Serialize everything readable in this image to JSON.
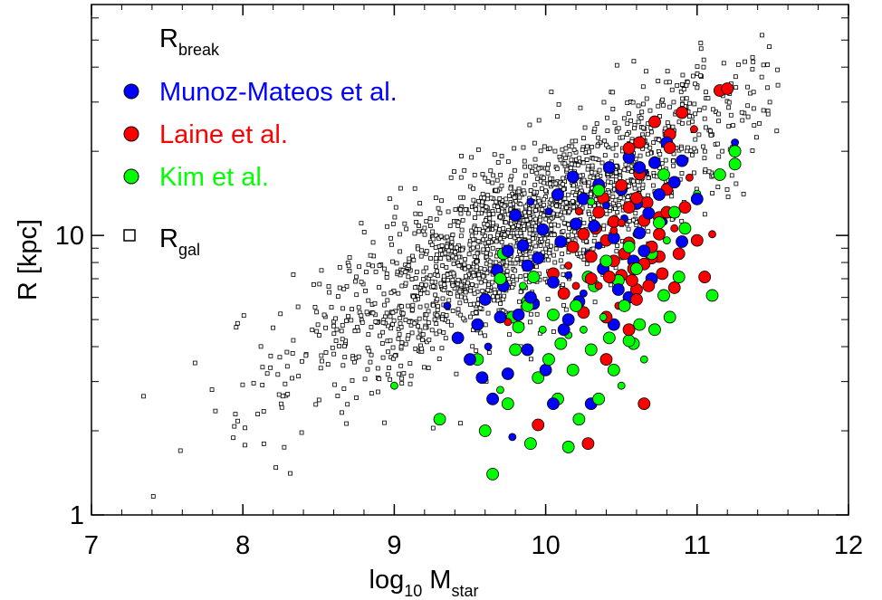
{
  "chart_data": {
    "type": "scatter",
    "xlabel": {
      "base": "log",
      "sub": "10",
      "mid": " M",
      "sub2": "star"
    },
    "ylabel": "R [kpc]",
    "xlim": [
      7,
      12
    ],
    "ylim": [
      1,
      67
    ],
    "yscale": "log",
    "xticks": [
      7,
      8,
      9,
      10,
      11,
      12
    ],
    "xtick_labels": [
      "7",
      "8",
      "9",
      "10",
      "11",
      "12"
    ],
    "yticks": [
      1,
      10
    ],
    "ytick_labels": [
      "1",
      "10"
    ],
    "legend": {
      "placement": "top-left",
      "header": {
        "main": "R",
        "sub": "break"
      },
      "footer": {
        "main": "R",
        "sub": "gal"
      }
    },
    "colors": {
      "Munoz-Mateos et al.": "#0000ff",
      "Laine et al.": "#ff0000",
      "Kim et al.": "#00ff00",
      "gal": "#000000"
    },
    "series": [
      {
        "name": "Munoz-Mateos et al.",
        "marker": "circle",
        "color": "#0000ff",
        "points": [
          [
            9.35,
            5.6
          ],
          [
            9.42,
            4.3
          ],
          [
            9.5,
            3.6
          ],
          [
            9.55,
            4.8
          ],
          [
            9.6,
            5.9
          ],
          [
            9.62,
            4.0
          ],
          [
            9.65,
            2.6
          ],
          [
            9.68,
            7.5
          ],
          [
            9.72,
            6.6
          ],
          [
            9.75,
            3.2
          ],
          [
            9.78,
            1.9
          ],
          [
            9.8,
            11.8
          ],
          [
            9.82,
            5.2
          ],
          [
            9.85,
            9.2
          ],
          [
            9.88,
            7.8
          ],
          [
            9.9,
            13.2
          ],
          [
            9.92,
            5.7
          ],
          [
            9.95,
            8.3
          ],
          [
            9.98,
            10.5
          ],
          [
            10.0,
            3.3
          ],
          [
            10.02,
            12.2
          ],
          [
            10.05,
            6.8
          ],
          [
            10.08,
            14.0
          ],
          [
            10.1,
            9.5
          ],
          [
            10.12,
            4.6
          ],
          [
            10.15,
            7.2
          ],
          [
            10.18,
            16.2
          ],
          [
            10.2,
            11.0
          ],
          [
            10.22,
            5.8
          ],
          [
            10.25,
            13.5
          ],
          [
            10.28,
            8.6
          ],
          [
            10.3,
            2.5
          ],
          [
            10.32,
            10.8
          ],
          [
            10.35,
            15.2
          ],
          [
            10.38,
            7.6
          ],
          [
            10.4,
            12.8
          ],
          [
            10.42,
            17.5
          ],
          [
            10.45,
            9.8
          ],
          [
            10.48,
            6.4
          ],
          [
            10.5,
            14.6
          ],
          [
            10.52,
            11.5
          ],
          [
            10.55,
            19.0
          ],
          [
            10.58,
            8.1
          ],
          [
            10.6,
            13.0
          ],
          [
            10.62,
            10.2
          ],
          [
            10.65,
            16.8
          ],
          [
            10.68,
            12.0
          ],
          [
            10.7,
            7.0
          ],
          [
            10.72,
            18.2
          ],
          [
            10.75,
            14.0
          ],
          [
            10.78,
            11.2
          ],
          [
            10.8,
            21.5
          ],
          [
            10.85,
            15.5
          ],
          [
            10.9,
            9.5
          ],
          [
            11.0,
            13.5
          ],
          [
            11.25,
            21.5
          ],
          [
            9.58,
            3.1
          ],
          [
            9.7,
            5.1
          ],
          [
            9.88,
            3.9
          ],
          [
            10.15,
            5.0
          ],
          [
            10.25,
            6.2
          ],
          [
            10.55,
            6.0
          ],
          [
            10.65,
            8.8
          ],
          [
            10.05,
            2.5
          ],
          [
            9.9,
            6.0
          ],
          [
            10.35,
            9.2
          ],
          [
            10.45,
            4.8
          ],
          [
            10.62,
            17.5
          ],
          [
            9.75,
            8.8
          ],
          [
            10.9,
            18.5
          ]
        ]
      },
      {
        "name": "Laine et al.",
        "marker": "circle",
        "color": "#ff0000",
        "points": [
          [
            9.75,
            4.9
          ],
          [
            9.95,
            2.1
          ],
          [
            10.05,
            7.3
          ],
          [
            10.12,
            6.2
          ],
          [
            10.18,
            9.1
          ],
          [
            10.22,
            12.2
          ],
          [
            10.25,
            5.3
          ],
          [
            10.28,
            1.8
          ],
          [
            10.3,
            8.4
          ],
          [
            10.33,
            10.6
          ],
          [
            10.35,
            6.6
          ],
          [
            10.38,
            13.6
          ],
          [
            10.4,
            9.6
          ],
          [
            10.42,
            7.1
          ],
          [
            10.45,
            11.2
          ],
          [
            10.48,
            5.6
          ],
          [
            10.5,
            15.1
          ],
          [
            10.52,
            8.6
          ],
          [
            10.55,
            12.6
          ],
          [
            10.57,
            6.9
          ],
          [
            10.6,
            10.1
          ],
          [
            10.62,
            16.6
          ],
          [
            10.65,
            7.9
          ],
          [
            10.67,
            13.1
          ],
          [
            10.7,
            9.1
          ],
          [
            10.72,
            18.6
          ],
          [
            10.75,
            11.6
          ],
          [
            10.77,
            7.3
          ],
          [
            10.8,
            14.6
          ],
          [
            10.82,
            20.6
          ],
          [
            10.85,
            10.6
          ],
          [
            10.88,
            8.6
          ],
          [
            10.92,
            12.6
          ],
          [
            11.0,
            9.6
          ],
          [
            11.05,
            7.1
          ],
          [
            11.1,
            10.1
          ],
          [
            11.15,
            33.0
          ],
          [
            10.65,
            2.5
          ],
          [
            10.4,
            3.6
          ],
          [
            10.55,
            4.6
          ],
          [
            10.2,
            6.6
          ],
          [
            10.45,
            8.1
          ],
          [
            10.58,
            7.6
          ],
          [
            10.68,
            6.6
          ],
          [
            10.75,
            10.1
          ],
          [
            10.5,
            11.1
          ],
          [
            10.35,
            12.1
          ],
          [
            10.6,
            13.6
          ],
          [
            10.25,
            10.1
          ],
          [
            10.8,
            12.1
          ],
          [
            10.95,
            16.1
          ],
          [
            10.72,
            25.5
          ],
          [
            10.55,
            20.5
          ],
          [
            10.62,
            21.5
          ],
          [
            10.3,
            7.0
          ],
          [
            10.48,
            6.3
          ],
          [
            10.6,
            5.9
          ],
          [
            10.7,
            8.3
          ],
          [
            10.85,
            6.5
          ],
          [
            10.4,
            5.1
          ],
          [
            10.15,
            7.8
          ],
          [
            10.9,
            27.5
          ],
          [
            11.2,
            33.5
          ],
          [
            10.5,
            7.2
          ],
          [
            10.55,
            9.4
          ],
          [
            10.45,
            10.4
          ],
          [
            10.6,
            6.4
          ],
          [
            10.65,
            11.3
          ],
          [
            10.75,
            8.4
          ],
          [
            10.82,
            23.0
          ],
          [
            10.98,
            24.0
          ]
        ]
      },
      {
        "name": "Kim et al.",
        "marker": "circle",
        "color": "#00ff00",
        "points": [
          [
            9.0,
            2.9
          ],
          [
            9.3,
            2.2
          ],
          [
            9.55,
            3.6
          ],
          [
            9.6,
            2.0
          ],
          [
            9.65,
            1.4
          ],
          [
            9.7,
            2.8
          ],
          [
            9.72,
            8.6
          ],
          [
            9.75,
            2.5
          ],
          [
            9.78,
            5.1
          ],
          [
            9.8,
            3.9
          ],
          [
            9.85,
            6.6
          ],
          [
            9.88,
            5.6
          ],
          [
            9.9,
            1.8
          ],
          [
            9.92,
            7.1
          ],
          [
            9.95,
            3.1
          ],
          [
            9.98,
            4.6
          ],
          [
            10.02,
            3.6
          ],
          [
            10.05,
            5.2
          ],
          [
            10.08,
            2.6
          ],
          [
            10.1,
            4.1
          ],
          [
            10.12,
            6.1
          ],
          [
            10.15,
            1.75
          ],
          [
            10.18,
            3.3
          ],
          [
            10.2,
            5.6
          ],
          [
            10.22,
            2.2
          ],
          [
            10.25,
            4.6
          ],
          [
            10.28,
            7.1
          ],
          [
            10.3,
            3.9
          ],
          [
            10.32,
            6.6
          ],
          [
            10.35,
            2.6
          ],
          [
            10.38,
            5.1
          ],
          [
            10.4,
            8.1
          ],
          [
            10.42,
            4.3
          ],
          [
            10.45,
            3.3
          ],
          [
            10.48,
            6.9
          ],
          [
            10.5,
            2.9
          ],
          [
            10.52,
            5.6
          ],
          [
            10.55,
            9.1
          ],
          [
            10.58,
            4.1
          ],
          [
            10.6,
            7.6
          ],
          [
            10.65,
            3.6
          ],
          [
            10.7,
            8.6
          ],
          [
            10.72,
            4.6
          ],
          [
            10.75,
            11.1
          ],
          [
            10.78,
            6.1
          ],
          [
            10.8,
            9.6
          ],
          [
            10.82,
            5.1
          ],
          [
            10.85,
            12.1
          ],
          [
            10.88,
            7.1
          ],
          [
            10.92,
            10.6
          ],
          [
            11.0,
            14.1
          ],
          [
            11.1,
            6.1
          ],
          [
            11.15,
            16.5
          ],
          [
            11.25,
            20.0
          ],
          [
            11.25,
            18.0
          ],
          [
            10.3,
            13.2
          ],
          [
            10.35,
            14.5
          ],
          [
            9.7,
            7.0
          ],
          [
            9.82,
            4.7
          ],
          [
            9.88,
            5.8
          ],
          [
            10.15,
            4.4
          ],
          [
            10.55,
            4.2
          ],
          [
            10.62,
            4.8
          ],
          [
            10.78,
            16.5
          ]
        ]
      },
      {
        "name": "gal",
        "marker": "square",
        "color": "#000000",
        "n": 1900,
        "seed": 12345,
        "relation": {
          "x_mean": 9.85,
          "x_sd": 0.72,
          "logR_at_x0": 1.06,
          "x0": 10,
          "slope": 0.3,
          "scatter": 0.14
        }
      }
    ]
  }
}
